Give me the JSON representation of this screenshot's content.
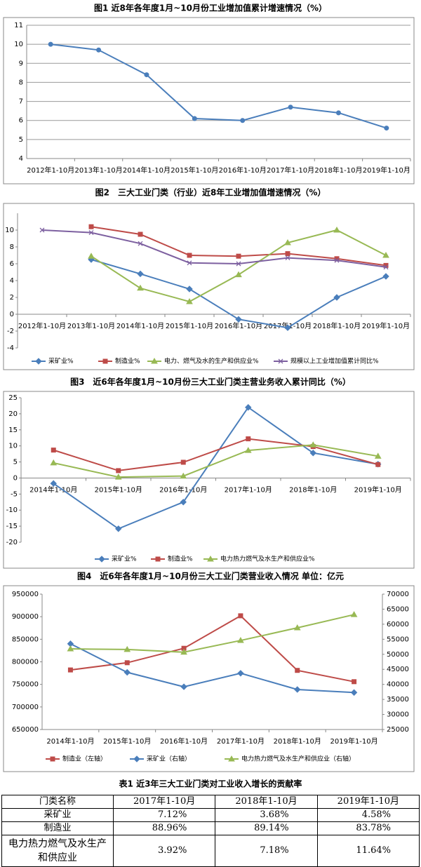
{
  "chart_data": [
    {
      "type": "line",
      "title": "图1  近8年各年度1月~10月份工业增加值累计增速情况（%）",
      "categories": [
        "2012年1-10月",
        "2013年1-10月",
        "2014年1-10月",
        "2015年1-10月",
        "2016年1-10月",
        "2017年1-10月",
        "2018年1-10月",
        "2019年1-10月"
      ],
      "values": [
        10,
        9.7,
        8.4,
        6.1,
        6.0,
        6.7,
        6.4,
        5.6
      ],
      "color": "#4a7ebb",
      "marker": "circle",
      "ylim": [
        4,
        11
      ],
      "yticks": [
        4,
        5,
        6,
        7,
        8,
        9,
        10,
        11
      ],
      "grid": true
    },
    {
      "type": "line",
      "title": "图2　三大工业门类（行业）近8年工业增加值增速情况（%）",
      "categories": [
        "2012年1-10月",
        "2013年1-10月",
        "2014年1-10月",
        "2015年1-10月",
        "2016年1-10月",
        "2017年1-10月",
        "2018年1-10月",
        "2019年1-10月"
      ],
      "series": [
        {
          "name": "采矿业%",
          "color": "#4a7ebb",
          "marker": "diamond",
          "values": [
            null,
            6.5,
            4.8,
            3.0,
            -0.6,
            -1.6,
            2.0,
            4.5
          ]
        },
        {
          "name": "制造业%",
          "color": "#be4b48",
          "marker": "square",
          "values": [
            null,
            10.4,
            9.5,
            7.0,
            6.9,
            7.2,
            6.6,
            5.8
          ]
        },
        {
          "name": "电力、燃气及水的生产和供应业%",
          "color": "#98b954",
          "marker": "triangle",
          "values": [
            null,
            6.9,
            3.1,
            1.5,
            4.7,
            8.5,
            10.0,
            7.0
          ]
        },
        {
          "name": "规模以上工业增加值累计同比%",
          "color": "#7d60a0",
          "marker": "x",
          "values": [
            10.0,
            9.7,
            8.4,
            6.1,
            6.0,
            6.7,
            6.4,
            5.6
          ]
        }
      ],
      "ylim": [
        -4,
        12
      ],
      "yticks": [
        -4,
        -2,
        0,
        2,
        4,
        6,
        8,
        10
      ],
      "grid": false,
      "legend": "bottom"
    },
    {
      "type": "line",
      "title": "图3　近6年各年度1月~10月份三大工业门类主营业务收入累计同比（%）",
      "categories": [
        "2014年1-10月",
        "2015年1-10月",
        "2016年1-10月",
        "2017年1-10月",
        "2018年1-10月",
        "2019年1-10月"
      ],
      "series": [
        {
          "name": "采矿业%",
          "color": "#4a7ebb",
          "marker": "diamond",
          "values": [
            -1.7,
            -15.8,
            -7.5,
            22.0,
            7.8,
            4.3
          ]
        },
        {
          "name": "制造业%",
          "color": "#be4b48",
          "marker": "square",
          "values": [
            8.7,
            2.3,
            4.9,
            12.2,
            9.8,
            4.2
          ]
        },
        {
          "name": "电力热力燃气及水生产和供应业%",
          "color": "#98b954",
          "marker": "triangle",
          "values": [
            4.7,
            0.3,
            0.6,
            8.6,
            10.3,
            6.8
          ]
        }
      ],
      "ylim": [
        -20,
        25
      ],
      "yticks": [
        -20,
        -15,
        -10,
        -5,
        0,
        5,
        10,
        15,
        20,
        25
      ],
      "grid": false,
      "negative_tick_color": "#ff0000",
      "legend": "bottom"
    },
    {
      "type": "line",
      "title": "图4　近6年各年度1月~10月份三大工业门类营业收入情况  单位：亿元",
      "categories": [
        "2014年1-10月",
        "2015年1-10月",
        "2016年1-10月",
        "2017年1-10月",
        "2018年1-10月",
        "2019年1-10月"
      ],
      "series": [
        {
          "name": "制造业（左轴）",
          "color": "#be4b48",
          "marker": "square",
          "values": [
            782000,
            798000,
            830000,
            902000,
            781000,
            756000
          ]
        },
        {
          "name": "采矿业（右轴）",
          "color": "#4a7ebb",
          "marker": "diamond",
          "axis": "y2",
          "values": [
            53500,
            44000,
            39200,
            43700,
            38300,
            37300
          ]
        },
        {
          "name": "电力热力燃气及水生产和供应业（右轴）",
          "color": "#98b954",
          "marker": "triangle",
          "axis": "y2",
          "values": [
            51800,
            51600,
            50700,
            54600,
            58800,
            63200
          ]
        }
      ],
      "ylim": [
        650000,
        950000
      ],
      "yticks": [
        650000,
        700000,
        750000,
        800000,
        850000,
        900000,
        950000
      ],
      "y2lim": [
        25000,
        70000
      ],
      "y2ticks": [
        25000,
        30000,
        35000,
        40000,
        45000,
        50000,
        55000,
        60000,
        65000,
        70000
      ],
      "grid": false,
      "legend": "bottom"
    }
  ],
  "table": {
    "title": "表1 近3年三大工业门类对工业收入增长的贡献率",
    "header": [
      "门类名称",
      "2017年1-10月",
      "2018年1-10月",
      "2019年1-10月"
    ],
    "rows": [
      [
        "采矿业",
        "7.12%",
        "3.68%",
        "4.58%"
      ],
      [
        "制造业",
        "88.96%",
        "89.14%",
        "83.78%"
      ],
      [
        "电力热力燃气及水生产和供应业",
        "3.92%",
        "7.18%",
        "11.64%"
      ]
    ]
  }
}
